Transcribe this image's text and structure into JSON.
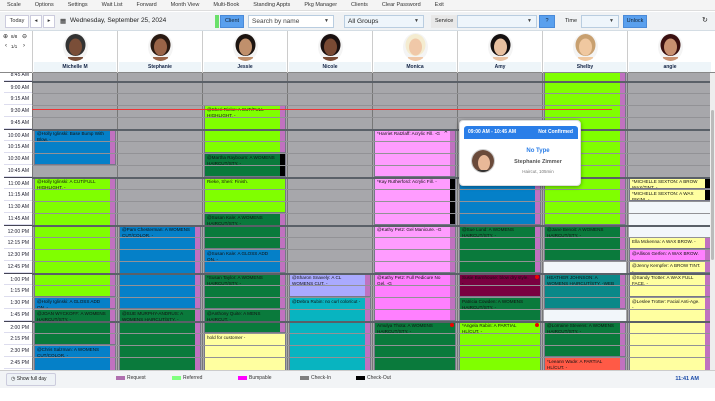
{
  "menu": [
    "Scale",
    "Options",
    "Settings",
    "Wait List",
    "Forward",
    "Month View",
    "Multi-Book",
    "Standing Appts",
    "Pkg Manager",
    "Clients",
    "Clear Password",
    "Exit"
  ],
  "toolbar": {
    "today": "Today",
    "prev": "◂",
    "next": "▸",
    "date": "Wednesday, September 25, 2024",
    "client_btn": "Client",
    "search_placeholder": "Search by name",
    "group": "All Groups",
    "service_label": "Service",
    "service_value": "",
    "help_btn": "?",
    "time_label": "Time",
    "time_value": "",
    "unlock_btn": "Unlock",
    "zoom_level": "8/8",
    "page": "1/1"
  },
  "staff": [
    {
      "name": "Michelle M",
      "skin": "#7a4e38",
      "hair": "#333"
    },
    {
      "name": "Stephanie",
      "skin": "#9a6448",
      "hair": "#2a1a12"
    },
    {
      "name": "Jessie",
      "skin": "#c0906c",
      "hair": "#1c1410"
    },
    {
      "name": "Nicole",
      "skin": "#7a4a34",
      "hair": "#1a1010"
    },
    {
      "name": "Monica",
      "skin": "#f0c8a8",
      "hair": "#f4ecd0"
    },
    {
      "name": "Amy",
      "skin": "#e8c0a0",
      "hair": "#151010"
    },
    {
      "name": "Shelby",
      "skin": "#f0c8a0",
      "hair": "#c8a070"
    },
    {
      "name": "angie",
      "skin": "#c89070",
      "hair": "#3a1010"
    }
  ],
  "times": [
    "8:45 AM",
    "9:00 AM",
    "9:15 AM",
    "9:30 AM",
    "9:45 AM",
    "10:00 AM",
    "10:15 AM",
    "10:30 AM",
    "10:45 AM",
    "11:00 AM",
    "11:15 AM",
    "11:30 AM",
    "11:45 AM",
    "12:00 PM",
    "12:15 PM",
    "12:30 PM",
    "12:45 PM",
    "1:00 PM",
    "1:15 PM",
    "1:30 PM",
    "1:45 PM",
    "2:00 PM",
    "2:15 PM",
    "2:30 PM",
    "2:45 PM"
  ],
  "colors": {
    "lime": "#80ff00",
    "green": "#0a7a3c",
    "blue": "#0580c8",
    "pink": "#ff9cff",
    "brightpink": "#ff80ff",
    "lavender": "#aaaaff",
    "teal": "#08b4c0",
    "darkteal": "#0a8888",
    "yellow": "#ffffa0",
    "maroon": "#7a0040",
    "red": "#ff5a46",
    "gray": "#a7a7ab"
  },
  "free": [
    {
      "col": 6,
      "start": 12.75,
      "end": 13
    },
    {
      "col": 6,
      "start": 13.75,
      "end": 14
    },
    {
      "col": 7,
      "start": 11.5,
      "end": 12.25
    }
  ],
  "appointments": [
    {
      "col": 0,
      "start": 10,
      "end": 10.75,
      "color": "blue",
      "text": "@Holly Iglinski: Base Bump With Blow. -",
      "req": true
    },
    {
      "col": 0,
      "start": 11,
      "end": 13.5,
      "color": "lime",
      "text": "@Holly Iglinski: A CUT/FULL HIGHLIGHT. -",
      "req": true
    },
    {
      "col": 0,
      "start": 13.5,
      "end": 13.75,
      "color": "blue",
      "text": "@Holly Iglinski: A GLOSS ADD ON. -",
      "req": true
    },
    {
      "col": 0,
      "start": 13.75,
      "end": 14.5,
      "color": "green",
      "text": "@JOAN WYCKOFF: A WOMENS HAIRCUT/STY. -",
      "req": true
    },
    {
      "col": 0,
      "start": 14.5,
      "end": 15.5,
      "color": "blue",
      "text": "@Chris Salzman: A WOMENS CUT/COLOR. -",
      "req": true
    },
    {
      "col": 1,
      "start": 12,
      "end": 13.75,
      "color": "blue",
      "text": "@Pam Chesterman: A WOMENS CUT/COLOR. -",
      "req": true
    },
    {
      "col": 1,
      "start": 13.75,
      "end": 15.5,
      "color": "green",
      "text": "@SUE MURPHY-ANDRUS: A WOMENS HAIRCUT/STY. -",
      "req": true
    },
    {
      "col": 2,
      "start": 9.5,
      "end": 10.5,
      "color": "lime",
      "text": "@Sheri Rieke: A CUT/FULL HIGHLIGHT. -",
      "req": true
    },
    {
      "col": 2,
      "start": 10.5,
      "end": 11,
      "color": "green",
      "text": "@Martha Raybourn: A WOMENS HAIRCUT/STY. -",
      "req": true,
      "checkout": true
    },
    {
      "col": 2,
      "start": 11,
      "end": 11.75,
      "color": "lime",
      "text": "Rieke, Sheri: Finish.",
      "req": false
    },
    {
      "col": 2,
      "start": 11.75,
      "end": 12.5,
      "color": "green",
      "text": "@Susan Kale: A WOMENS HAIRCUT/STY. -",
      "req": true
    },
    {
      "col": 2,
      "start": 12.5,
      "end": 13,
      "color": "blue",
      "text": "@Susan Kale: A GLOSS ADD ON. -",
      "req": true
    },
    {
      "col": 2,
      "start": 13,
      "end": 13.75,
      "color": "green",
      "text": "*Susan Taylor: A WOMENS HAIRCUT/STY. -",
      "req": true
    },
    {
      "col": 2,
      "start": 13.75,
      "end": 14.25,
      "color": "green",
      "text": "@Anthony Quite: A MENS HAIRCUT. -",
      "req": true
    },
    {
      "col": 2,
      "start": 14.25,
      "end": 15.5,
      "color": "yellow",
      "text": "hold for customer -",
      "req": false
    },
    {
      "col": 3,
      "start": 13,
      "end": 13.5,
      "color": "lavender",
      "text": "@Sharon Snavely: A CL WOMENS CUT. -",
      "req": true
    },
    {
      "col": 3,
      "start": 13.5,
      "end": 15.5,
      "color": "teal",
      "text": "@Debra Rubin: no curl color/cut -",
      "req": true
    },
    {
      "col": 4,
      "start": 10,
      "end": 11,
      "color": "pink",
      "text": "*Harriet Ratzlaff: Acrylic Fill. -G",
      "req": true,
      "close": true
    },
    {
      "col": 4,
      "start": 11,
      "end": 12,
      "color": "pink",
      "text": "*Kay Rutherford: Acrylic Fill. -",
      "req": true,
      "checkout": true
    },
    {
      "col": 4,
      "start": 12,
      "end": 13,
      "color": "pink",
      "text": "@Kathy Petz: Gel Manicure. -G",
      "req": true
    },
    {
      "col": 4,
      "start": 13,
      "end": 14,
      "color": "brightpink",
      "text": "@Kathy Petz: Full Pedicure No Gel. -G",
      "req": true
    },
    {
      "col": 4,
      "start": 14,
      "end": 15.5,
      "color": "green",
      "text": "Amulya Thota: A WOMENS HAIRCUT/STY. -",
      "req": false,
      "dot": true
    },
    {
      "col": 5,
      "start": 11,
      "end": 12,
      "color": "blue",
      "text": "",
      "req": true
    },
    {
      "col": 5,
      "start": 12,
      "end": 13,
      "color": "green",
      "text": "@Sue Lund: A WOMENS HAIRCUT/STY. -",
      "req": true
    },
    {
      "col": 5,
      "start": 13,
      "end": 13.5,
      "color": "maroon",
      "text": "Susie Barnhouse: blow dry style. -",
      "req": false,
      "dot": true
    },
    {
      "col": 5,
      "start": 13.5,
      "end": 14,
      "color": "green",
      "text": "Patricia Cowden: A WOMENS HAIRCUT/STY. -",
      "req": false
    },
    {
      "col": 5,
      "start": 14,
      "end": 15.5,
      "color": "lime",
      "text": "*Angela Rabin: A PARTIAL HL/CUT. -",
      "req": false,
      "dot": true
    },
    {
      "col": 6,
      "start": 8.5,
      "end": 12,
      "color": "lime",
      "text": "@Kristin Rieke: A CUT/FULL HIGHLIGHT. -",
      "req": true
    },
    {
      "col": 6,
      "start": 12,
      "end": 12.75,
      "color": "green",
      "text": "@Jane Benoit: A WOMENS HAIRCUT/STY. -",
      "req": true
    },
    {
      "col": 6,
      "start": 13,
      "end": 13.75,
      "color": "darkteal",
      "text": "HEATHER JOHNSON: A WOMENS HAIRCUT/STY. -WEB",
      "req": true
    },
    {
      "col": 6,
      "start": 14,
      "end": 14.75,
      "color": "green",
      "text": "@Lorraine Stevens: A WOMENS HAIRCUT/STY. -",
      "req": true
    },
    {
      "col": 6,
      "start": 14.75,
      "end": 15.5,
      "color": "red",
      "text": "*Leeann Wade: A PARTIAL HL/CUT. -",
      "req": true
    },
    {
      "col": 7,
      "start": 11,
      "end": 11.25,
      "color": "yellow",
      "text": "*MICHELLE SEXTON: A BROW WAX/TINT. -",
      "req": true,
      "checkout": true
    },
    {
      "col": 7,
      "start": 11.25,
      "end": 11.5,
      "color": "yellow",
      "text": "*MICHELLE SEXTON: A WAX BIKINI. -",
      "req": true,
      "checkout": true
    },
    {
      "col": 7,
      "start": 12.25,
      "end": 12.5,
      "color": "yellow",
      "text": "Ella Mckenna: A WAX BROW. -",
      "req": true
    },
    {
      "col": 7,
      "start": 12.5,
      "end": 12.75,
      "color": "brightpink",
      "text": "@Allison Gerfen: A WAX BROW. -",
      "req": true
    },
    {
      "col": 7,
      "start": 12.75,
      "end": 13,
      "color": "yellow",
      "text": "@Jenny Kempfer: A BROW TINT. -",
      "req": true
    },
    {
      "col": 7,
      "start": 13,
      "end": 13.5,
      "color": "yellow",
      "text": "@Sandy Trotter: A WAX FULL FACE. -",
      "req": true
    },
    {
      "col": 7,
      "start": 13.5,
      "end": 15.5,
      "color": "yellow",
      "text": "@Leslee Trotter: Facial Anti-Age. -",
      "req": true
    }
  ],
  "popup": {
    "time": "09:00 AM - 10:45 AM",
    "status": "Not Confirmed",
    "type": "No Type",
    "client": "Stephanie Zimmer",
    "service": "Haircut, 105min"
  },
  "footer": {
    "show_full_day": "Show full day",
    "clock": "11:41 AM",
    "legend": [
      {
        "label": "Request",
        "color": "#b070b0"
      },
      {
        "label": "Referred",
        "color": "#80ff80"
      },
      {
        "label": "Bumpable",
        "color": "#ff00ff"
      },
      {
        "label": "Check-In",
        "color": "#808080"
      },
      {
        "label": "Check-Out",
        "color": "#000000"
      }
    ]
  }
}
